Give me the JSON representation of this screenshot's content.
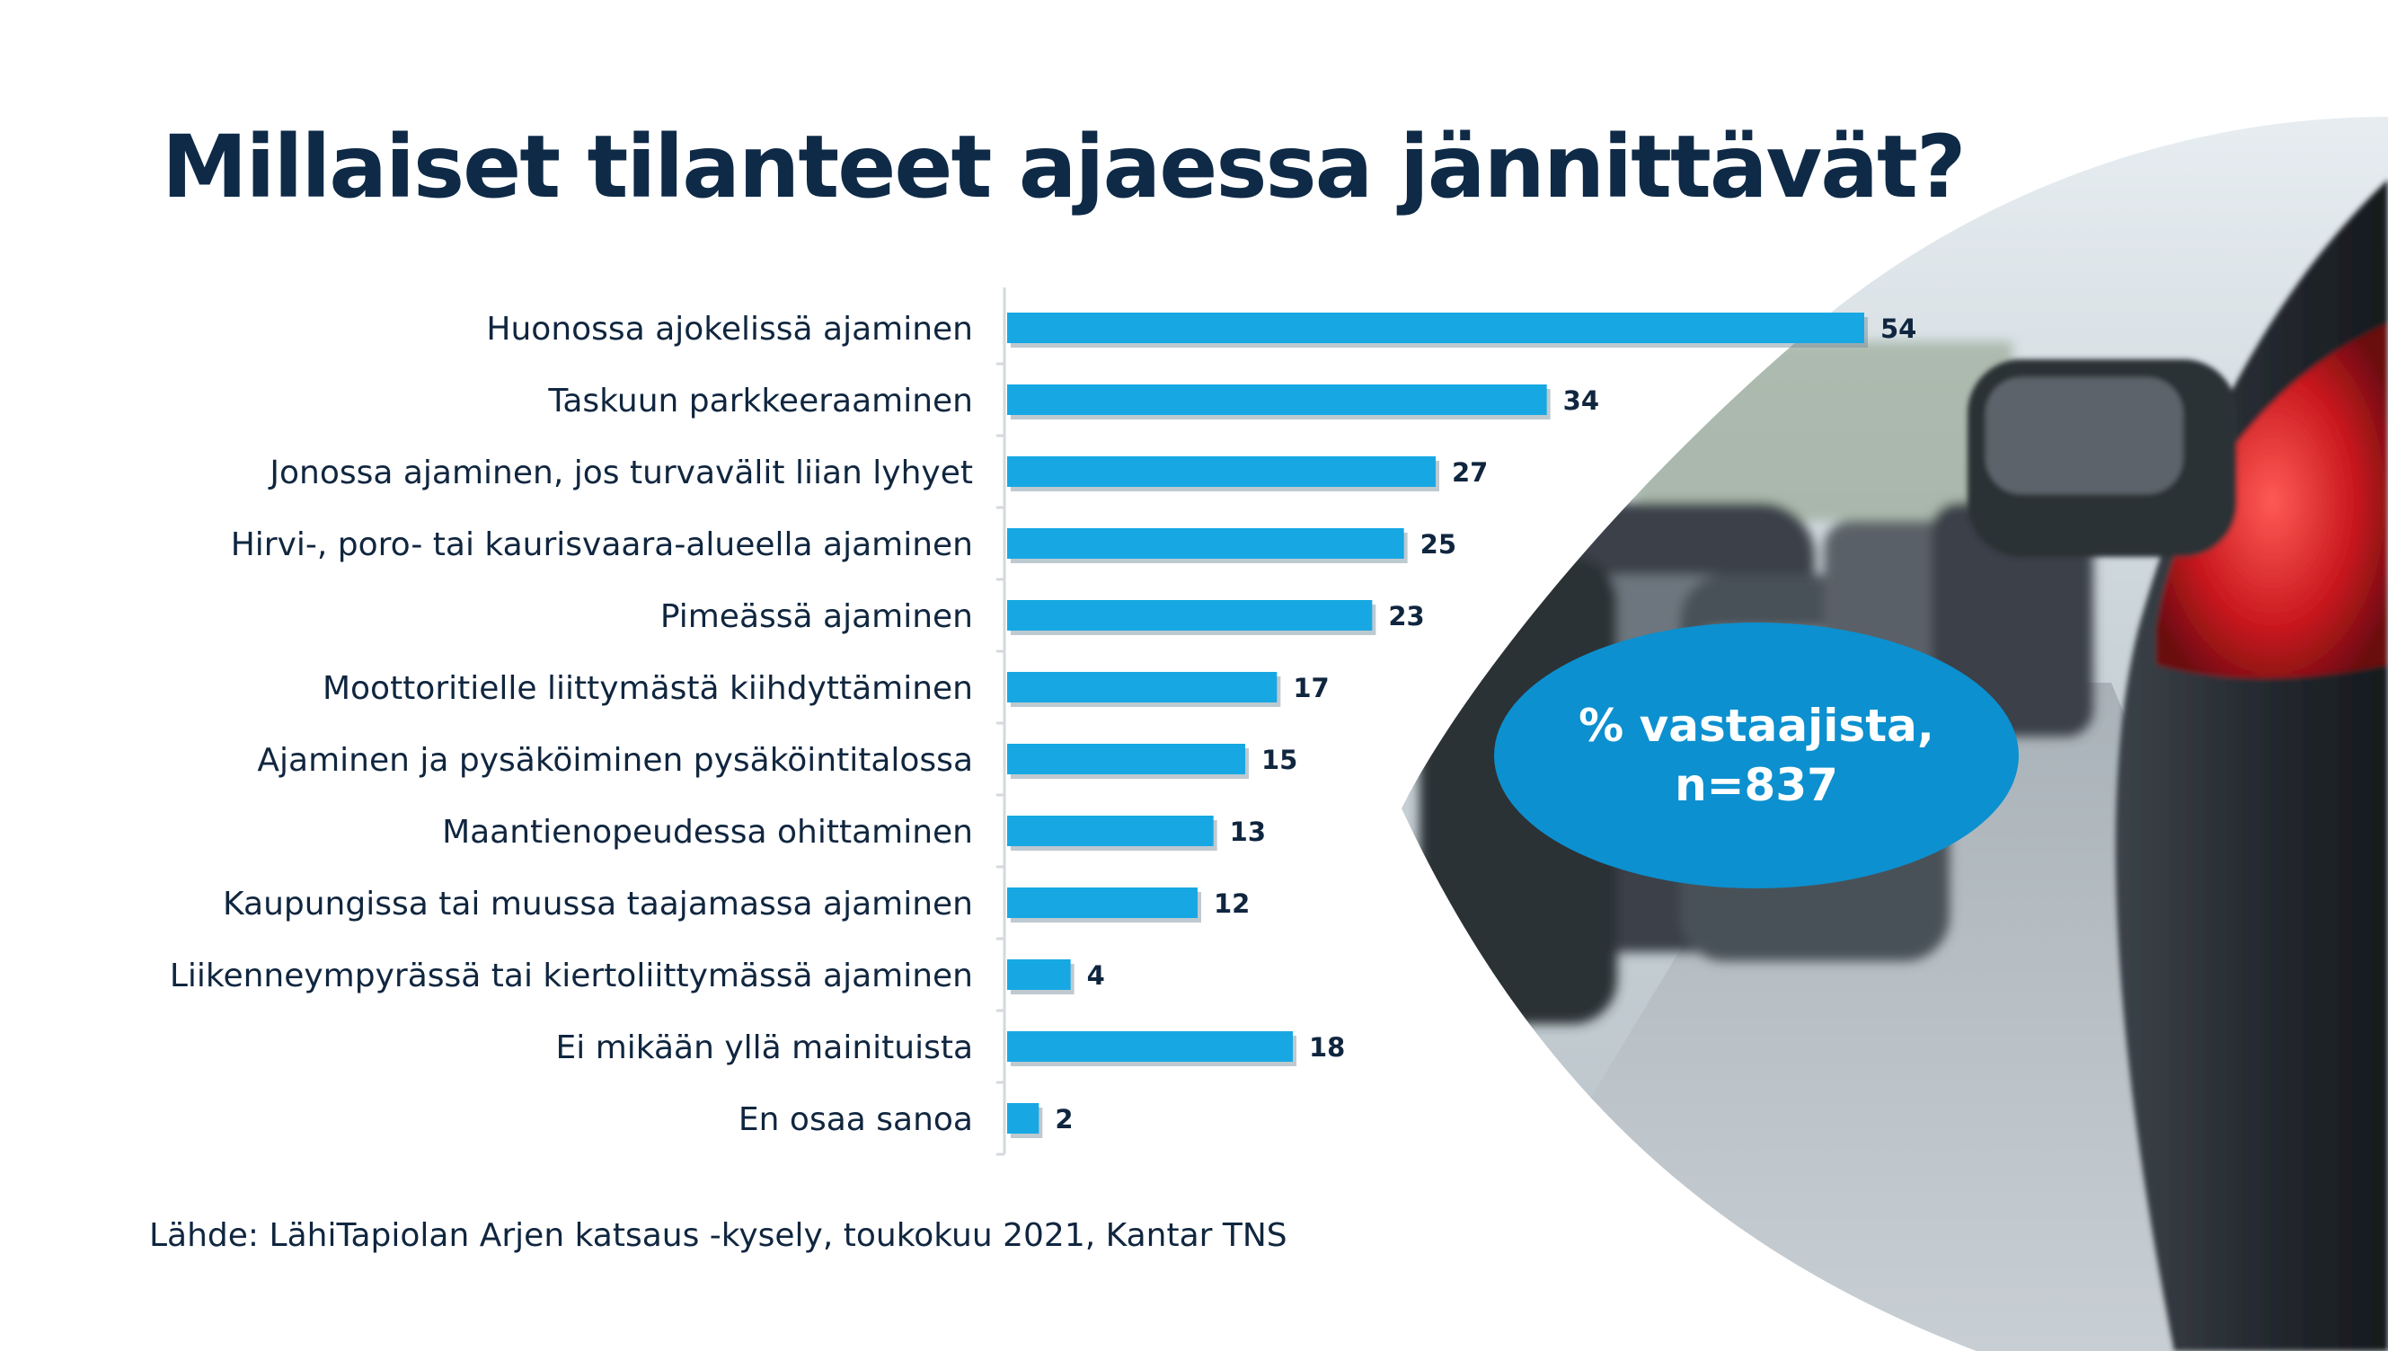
{
  "title": "Millaiset tilanteet ajaessa jännittävät?",
  "source": "Lähde: LähiTapiolan Arjen katsaus -kysely, toukokuu 2021, Kantar TNS",
  "respondents_note": "% vastaajista, n=837",
  "colors": {
    "bar": "#17a8e3",
    "title": "#0e2a47",
    "ellipse": "#0c90cf",
    "text": "#10263f"
  },
  "chart_data": {
    "type": "bar",
    "orientation": "horizontal",
    "categories": [
      "Huonossa ajokelissä ajaminen",
      "Taskuun parkkeeraaminen",
      "Jonossa ajaminen, jos turvavälit liian lyhyet",
      "Hirvi-, poro- tai kaurisvaara-alueella ajaminen",
      "Pimeässä ajaminen",
      "Moottoritielle liittymästä kiihdyttäminen",
      "Ajaminen ja pysäköiminen pysäköintitalossa",
      "Maantienopeudessa ohittaminen",
      "Kaupungissa tai muussa taajamassa ajaminen",
      "Liikenneympyrässä tai kiertoliittymässä ajaminen",
      "Ei mikään yllä mainituista",
      "En osaa sanoa"
    ],
    "values": [
      54,
      34,
      27,
      25,
      23,
      17,
      15,
      13,
      12,
      4,
      18,
      2
    ],
    "xlim": [
      0,
      54
    ],
    "data_labels": true,
    "grid": false,
    "legend": "none"
  }
}
